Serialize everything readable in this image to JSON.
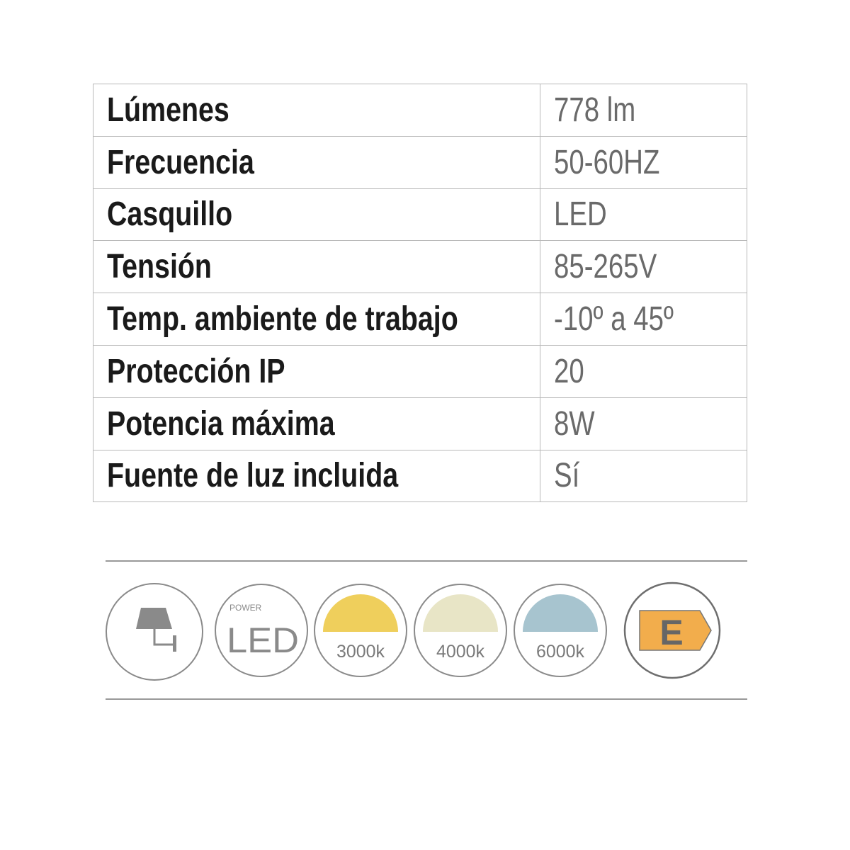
{
  "specs": [
    {
      "label": "Lúmenes",
      "value": "778 lm"
    },
    {
      "label": "Frecuencia",
      "value": "50-60HZ"
    },
    {
      "label": "Casquillo",
      "value": "LED"
    },
    {
      "label": "Tensión",
      "value": "85-265V"
    },
    {
      "label": "Temp. ambiente de trabajo",
      "value": "-10º a 45º"
    },
    {
      "label": "Protección IP",
      "value": "20"
    },
    {
      "label": "Potencia máxima",
      "value": "8W"
    },
    {
      "label": "Fuente de luz incluida",
      "value": "Sí"
    }
  ],
  "badges": {
    "wall_lamp_icon": "wall-lamp-icon",
    "power_small": "POWER",
    "power_big": "LED",
    "temps": [
      {
        "label": "3000k",
        "color": "#efcf5c"
      },
      {
        "label": "4000k",
        "color": "#e8e5c6"
      },
      {
        "label": "6000k",
        "color": "#a7c4cf"
      }
    ],
    "energy_class": "E",
    "energy_color": "#f2ad4c"
  }
}
